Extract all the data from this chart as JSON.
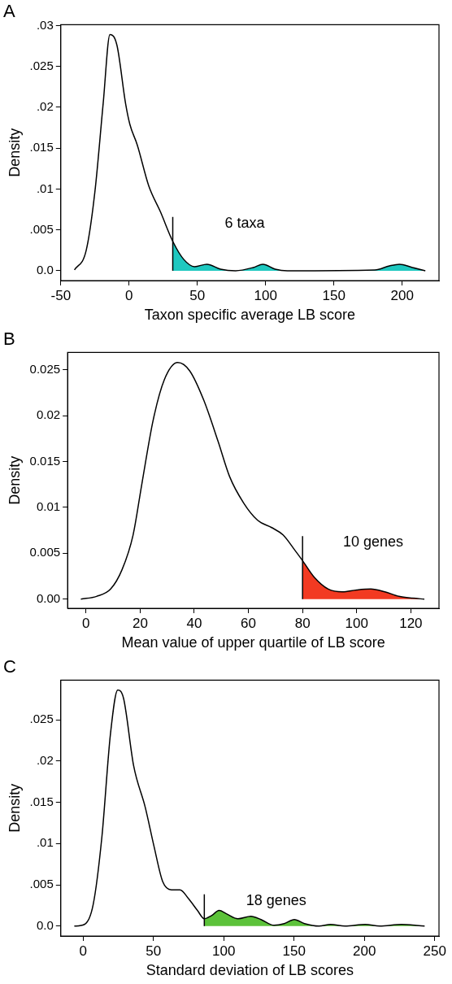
{
  "chart_data": [
    {
      "type": "line",
      "title": "A",
      "xlabel": "Taxon specific average LB score",
      "ylabel": "Density",
      "xlim": [
        -50,
        227
      ],
      "ylim": [
        -0.0012,
        0.0301
      ],
      "xticks": [
        -50,
        0,
        50,
        100,
        150,
        200
      ],
      "yticks": [
        {
          "value": 0,
          "label": "0.0"
        },
        {
          "value": 0.005,
          "label": ".005"
        },
        {
          "value": 0.01,
          "label": ".01"
        },
        {
          "value": 0.015,
          "label": ".015"
        },
        {
          "value": 0.02,
          "label": ".02"
        },
        {
          "value": 0.025,
          "label": ".025"
        },
        {
          "value": 0.03,
          "label": ".03"
        }
      ],
      "series": [
        {
          "color": "#000000",
          "x": [
            -40,
            -31.4,
            -25,
            -19,
            -14,
            -8.9,
            -2.5,
            0.6,
            6,
            14.4,
            23,
            32,
            40,
            48,
            57,
            67,
            78,
            91,
            98,
            107,
            116,
            180,
            190.7,
            198,
            207.5,
            217
          ],
          "values": [
            0.0001,
            0.0025,
            0.0097,
            0.0204,
            0.0289,
            0.0276,
            0.0204,
            0.0179,
            0.0154,
            0.0104,
            0.0072,
            0.0036,
            0.0014,
            0.0005,
            0.0008,
            0.0002,
            0,
            0.0004,
            0.0008,
            0.0002,
            0,
            0.0001,
            0.0006,
            0.0008,
            0.0004,
            0
          ]
        },
        {
          "type": "area",
          "color": "#1fc8c0",
          "x": [
            32,
            40,
            48,
            57,
            67,
            78,
            91,
            98,
            107,
            116,
            180,
            190.7,
            198,
            207.5,
            217
          ],
          "values": [
            0.0036,
            0.0014,
            0.0005,
            0.0008,
            0.0002,
            0,
            0.0004,
            0.0008,
            0.0002,
            0,
            0.0001,
            0.0006,
            0.0008,
            0.0004,
            0
          ]
        }
      ],
      "ref_lines": [
        {
          "axis": "x",
          "value": 32
        }
      ],
      "annotations": [
        "6 taxa"
      ]
    },
    {
      "type": "line",
      "title": "B",
      "xlabel": "Mean value of upper quartile of LB score",
      "ylabel": "Density",
      "xlim": [
        -6.8,
        130.4
      ],
      "ylim": [
        -0.001,
        0.0269
      ],
      "xticks": [
        0,
        20,
        40,
        60,
        80,
        100,
        120
      ],
      "yticks": [
        {
          "value": 0,
          "label": "0.00"
        },
        {
          "value": 0.005,
          "label": "0.005"
        },
        {
          "value": 0.01,
          "label": "0.01"
        },
        {
          "value": 0.015,
          "label": "0.015"
        },
        {
          "value": 0.02,
          "label": "0.02"
        },
        {
          "value": 0.025,
          "label": "0.025"
        }
      ],
      "series": [
        {
          "color": "#000000",
          "x": [
            -1.9,
            3.9,
            9.1,
            13.3,
            17.4,
            20.6,
            24.8,
            28.9,
            33.9,
            38.3,
            43.5,
            48.8,
            53,
            58.2,
            63.4,
            68.6,
            72.8,
            77,
            80,
            84.3,
            89.5,
            94.7,
            100,
            105.2,
            110.4,
            115.6,
            120.8,
            125
          ],
          "values": [
            0,
            0.0003,
            0.0011,
            0.0032,
            0.007,
            0.0125,
            0.0195,
            0.0239,
            0.0258,
            0.0249,
            0.0217,
            0.0172,
            0.0134,
            0.0105,
            0.0086,
            0.0078,
            0.007,
            0.0054,
            0.0042,
            0.0024,
            0.0011,
            0.0008,
            0.001,
            0.0011,
            0.0008,
            0.0003,
            0.0001,
            0
          ]
        },
        {
          "type": "area",
          "color": "#f23a22",
          "x": [
            80,
            84.3,
            89.5,
            94.7,
            100,
            105.2,
            110.4,
            115.6,
            120.8,
            125
          ],
          "values": [
            0.0042,
            0.0024,
            0.0011,
            0.0008,
            0.001,
            0.0011,
            0.0008,
            0.0003,
            0.0001,
            0
          ]
        }
      ],
      "ref_lines": [
        {
          "axis": "x",
          "value": 80
        }
      ],
      "annotations": [
        "10 genes"
      ]
    },
    {
      "type": "line",
      "title": "C",
      "xlabel": "Standard deviation of LB scores",
      "ylabel": "Density",
      "xlim": [
        -15.8,
        253
      ],
      "ylim": [
        -0.0012,
        0.0298
      ],
      "xticks": [
        0,
        50,
        100,
        150,
        200,
        250
      ],
      "yticks": [
        {
          "value": 0,
          "label": "0.0"
        },
        {
          "value": 0.005,
          "label": ".005"
        },
        {
          "value": 0.01,
          "label": ".01"
        },
        {
          "value": 0.015,
          "label": ".015"
        },
        {
          "value": 0.02,
          "label": ".02"
        },
        {
          "value": 0.025,
          "label": ".025"
        }
      ],
      "series": [
        {
          "color": "#000000",
          "x": [
            -6.2,
            1,
            7.2,
            13.4,
            19.5,
            24.7,
            28.8,
            36,
            44.2,
            50.4,
            56.6,
            62.8,
            68.9,
            75.1,
            81.3,
            86.2,
            91.6,
            96.7,
            101.9,
            110.1,
            119.3,
            126.5,
            135.8,
            143,
            150.2,
            157.4,
            167.7,
            175.9,
            186.2,
            200.6,
            210.9,
            226.3,
            242.8
          ],
          "values": [
            0,
            0.0002,
            0.0026,
            0.0108,
            0.0233,
            0.0286,
            0.0276,
            0.0194,
            0.0144,
            0.0097,
            0.0054,
            0.0044,
            0.0044,
            0.0033,
            0.0019,
            0.0009,
            0.0013,
            0.0019,
            0.0015,
            0.0009,
            0.0012,
            0.0008,
            0.0001,
            0.0003,
            0.0008,
            0.0003,
            0,
            0.0002,
            0,
            0.0002,
            0,
            0.0002,
            0
          ]
        },
        {
          "type": "area",
          "color": "#5cc23a",
          "x": [
            86.2,
            91.6,
            96.7,
            101.9,
            110.1,
            119.3,
            126.5,
            135.8,
            143,
            150.2,
            157.4,
            167.7,
            175.9,
            186.2,
            200.6,
            210.9,
            226.3,
            242.8
          ],
          "values": [
            0.0009,
            0.0013,
            0.0019,
            0.0015,
            0.0009,
            0.0012,
            0.0008,
            0.0001,
            0.0003,
            0.0008,
            0.0003,
            0,
            0.0002,
            0,
            0.0002,
            0,
            0.0002,
            0
          ]
        }
      ],
      "ref_lines": [
        {
          "axis": "x",
          "value": 86.2
        }
      ],
      "annotations": [
        "18 genes"
      ]
    }
  ]
}
